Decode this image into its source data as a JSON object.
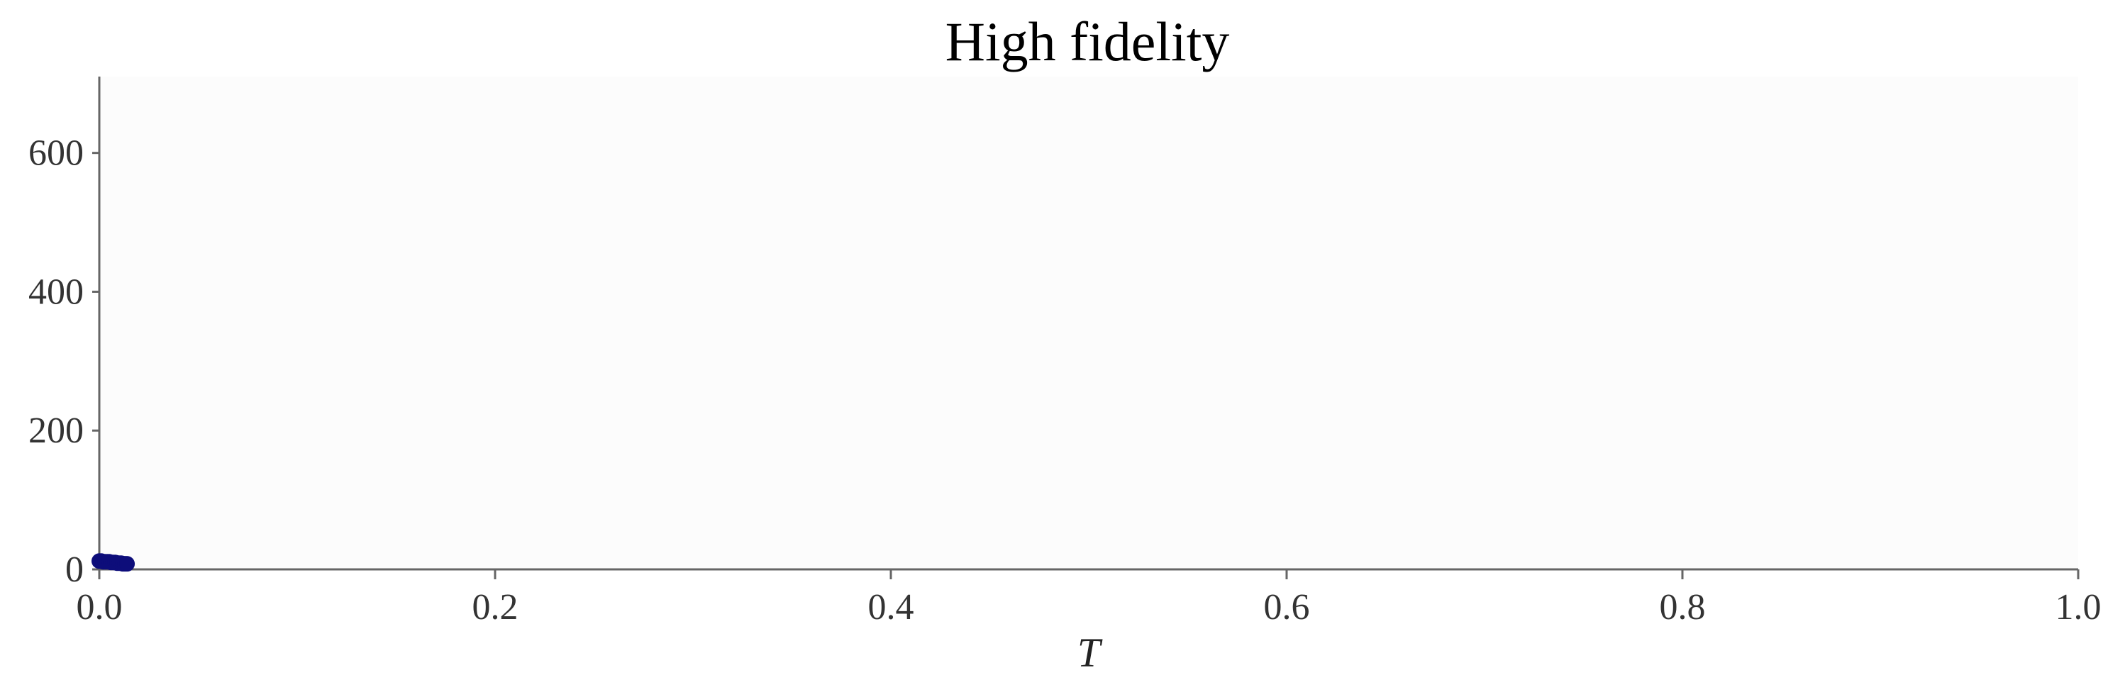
{
  "chart_data": {
    "type": "scatter",
    "title": "High fidelity",
    "xlabel": "T",
    "ylabel": "",
    "xlim": [
      0.0,
      1.0
    ],
    "ylim": [
      0,
      710
    ],
    "x_ticks": [
      "0.0",
      "0.2",
      "0.4",
      "0.6",
      "0.8",
      "1.0"
    ],
    "y_ticks": [
      "0",
      "200",
      "400",
      "600"
    ],
    "grid": false,
    "legend": "none",
    "colors": {
      "points": "#0d0d7a",
      "plot_background": "#fcfcfc",
      "axis": "#666666"
    },
    "series": [
      {
        "x": [
          0.0,
          0.001,
          0.002,
          0.003,
          0.004,
          0.005,
          0.006,
          0.007,
          0.008,
          0.009,
          0.01,
          0.011,
          0.012,
          0.013,
          0.014
        ],
        "y": [
          12,
          12,
          11,
          11,
          11,
          11,
          10,
          10,
          10,
          9,
          9,
          9,
          8,
          8,
          8
        ]
      }
    ]
  }
}
